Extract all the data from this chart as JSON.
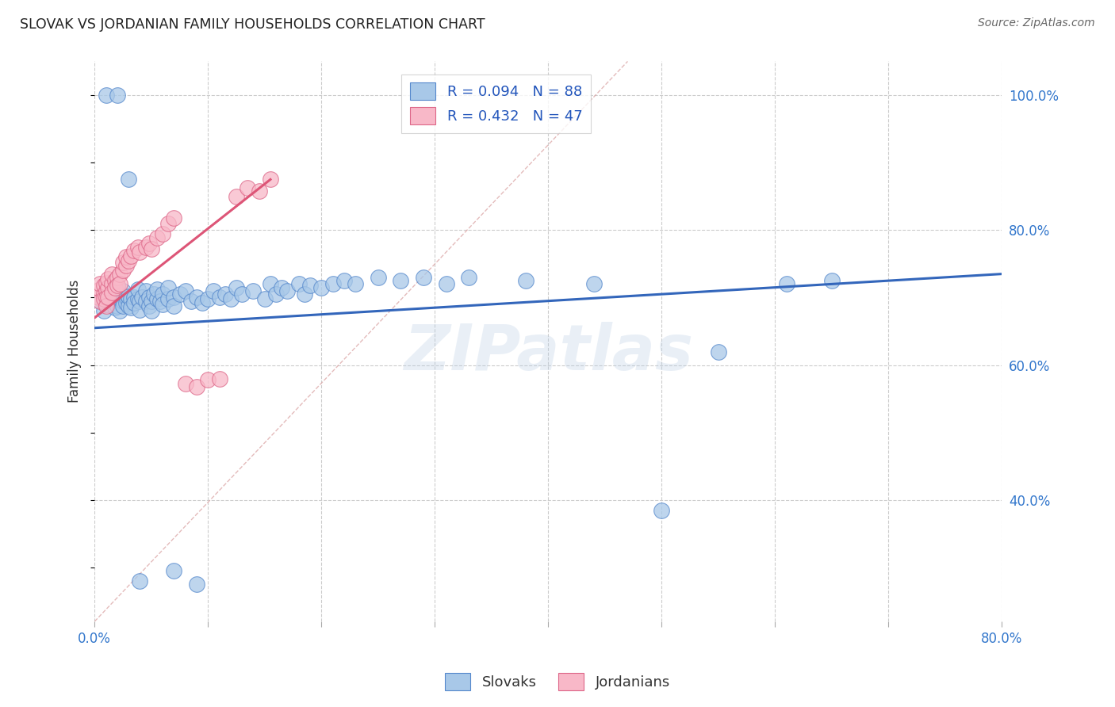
{
  "title": "SLOVAK VS JORDANIAN FAMILY HOUSEHOLDS CORRELATION CHART",
  "source": "Source: ZipAtlas.com",
  "ylabel": "Family Households",
  "watermark": "ZIPatlas",
  "xlim": [
    0.0,
    0.8
  ],
  "ylim": [
    0.22,
    1.05
  ],
  "yticks": [
    0.4,
    0.6,
    0.8,
    1.0
  ],
  "ytick_labels": [
    "40.0%",
    "60.0%",
    "80.0%",
    "100.0%"
  ],
  "xticks": [
    0.0,
    0.1,
    0.2,
    0.3,
    0.4,
    0.5,
    0.6,
    0.7,
    0.8
  ],
  "xtick_labels": [
    "0.0%",
    "",
    "",
    "",
    "",
    "",
    "",
    "",
    "80.0%"
  ],
  "legend_blue_label": "R = 0.094   N = 88",
  "legend_pink_label": "R = 0.432   N = 47",
  "legend_bottom_slovaks": "Slovaks",
  "legend_bottom_jordanians": "Jordanians",
  "blue_color": "#a8c8e8",
  "pink_color": "#f8b8c8",
  "blue_edge_color": "#5588cc",
  "pink_edge_color": "#dd6688",
  "blue_line_color": "#3366bb",
  "pink_line_color": "#dd5577",
  "dashed_line_color": "#ddaaaa",
  "title_color": "#222222",
  "source_color": "#666666",
  "axis_label_color": "#333333",
  "tick_color": "#3377cc",
  "grid_color": "#cccccc",
  "background_color": "#ffffff",
  "slovaks_x": [
    0.005,
    0.008,
    0.01,
    0.012,
    0.015,
    0.015,
    0.018,
    0.018,
    0.02,
    0.02,
    0.02,
    0.022,
    0.022,
    0.025,
    0.025,
    0.025,
    0.028,
    0.028,
    0.03,
    0.03,
    0.03,
    0.032,
    0.032,
    0.035,
    0.035,
    0.038,
    0.038,
    0.04,
    0.04,
    0.042,
    0.045,
    0.045,
    0.048,
    0.048,
    0.05,
    0.05,
    0.052,
    0.055,
    0.055,
    0.058,
    0.06,
    0.06,
    0.065,
    0.065,
    0.07,
    0.07,
    0.075,
    0.08,
    0.085,
    0.09,
    0.095,
    0.1,
    0.105,
    0.11,
    0.115,
    0.12,
    0.125,
    0.13,
    0.14,
    0.15,
    0.155,
    0.16,
    0.165,
    0.17,
    0.18,
    0.185,
    0.19,
    0.2,
    0.21,
    0.22,
    0.23,
    0.25,
    0.27,
    0.29,
    0.31,
    0.33,
    0.38,
    0.44,
    0.5,
    0.55,
    0.61,
    0.65,
    0.01,
    0.02,
    0.03,
    0.04,
    0.07,
    0.09
  ],
  "slovaks_y": [
    0.695,
    0.68,
    0.69,
    0.7,
    0.695,
    0.71,
    0.685,
    0.7,
    0.695,
    0.688,
    0.705,
    0.698,
    0.68,
    0.695,
    0.71,
    0.688,
    0.7,
    0.692,
    0.695,
    0.688,
    0.702,
    0.698,
    0.685,
    0.7,
    0.692,
    0.698,
    0.712,
    0.695,
    0.682,
    0.7,
    0.71,
    0.695,
    0.7,
    0.688,
    0.695,
    0.68,
    0.705,
    0.698,
    0.712,
    0.695,
    0.705,
    0.69,
    0.698,
    0.715,
    0.7,
    0.688,
    0.705,
    0.71,
    0.695,
    0.7,
    0.692,
    0.698,
    0.71,
    0.7,
    0.705,
    0.698,
    0.715,
    0.705,
    0.71,
    0.698,
    0.72,
    0.705,
    0.715,
    0.71,
    0.72,
    0.705,
    0.718,
    0.715,
    0.72,
    0.725,
    0.72,
    0.73,
    0.725,
    0.73,
    0.72,
    0.73,
    0.725,
    0.72,
    0.385,
    0.62,
    0.72,
    0.725,
    1.0,
    1.0,
    0.875,
    0.28,
    0.295,
    0.275
  ],
  "jordanians_x": [
    0.003,
    0.005,
    0.005,
    0.005,
    0.008,
    0.008,
    0.008,
    0.01,
    0.01,
    0.01,
    0.01,
    0.012,
    0.012,
    0.012,
    0.015,
    0.015,
    0.015,
    0.018,
    0.018,
    0.02,
    0.02,
    0.022,
    0.022,
    0.025,
    0.025,
    0.028,
    0.028,
    0.03,
    0.032,
    0.035,
    0.038,
    0.04,
    0.045,
    0.048,
    0.05,
    0.055,
    0.06,
    0.065,
    0.07,
    0.08,
    0.09,
    0.1,
    0.11,
    0.125,
    0.135,
    0.145,
    0.155
  ],
  "jordanians_y": [
    0.7,
    0.712,
    0.695,
    0.72,
    0.705,
    0.718,
    0.698,
    0.71,
    0.7,
    0.722,
    0.688,
    0.715,
    0.7,
    0.728,
    0.72,
    0.708,
    0.735,
    0.725,
    0.715,
    0.73,
    0.718,
    0.735,
    0.72,
    0.74,
    0.752,
    0.748,
    0.76,
    0.755,
    0.762,
    0.77,
    0.775,
    0.768,
    0.775,
    0.78,
    0.772,
    0.788,
    0.795,
    0.81,
    0.818,
    0.572,
    0.568,
    0.578,
    0.58,
    0.85,
    0.862,
    0.858,
    0.875
  ],
  "blue_line_x0": 0.0,
  "blue_line_y0": 0.655,
  "blue_line_x1": 0.8,
  "blue_line_y1": 0.735,
  "pink_line_x0": 0.0,
  "pink_line_y0": 0.67,
  "pink_line_x1": 0.155,
  "pink_line_y1": 0.875,
  "dash_line_x0": 0.0,
  "dash_line_y0": 0.22,
  "dash_line_x1": 0.47,
  "dash_line_y1": 1.05
}
